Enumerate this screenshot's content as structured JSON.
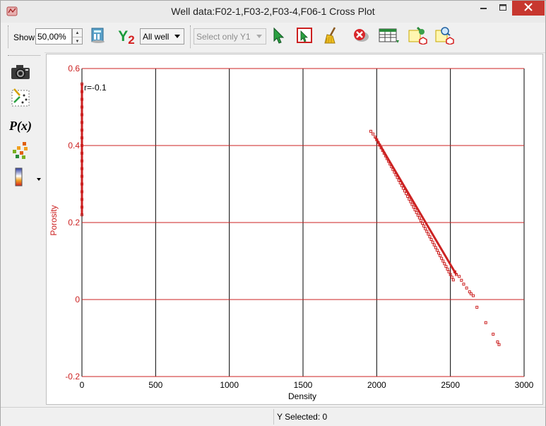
{
  "window": {
    "title": "Well data:F02-1,F03-2,F03-4,F06-1 Cross Plot",
    "icon": "app-logo-icon"
  },
  "toolbar": {
    "show_label": "Show",
    "show_value": "50,00%",
    "y2_label": "Y",
    "y2_subscript": "2",
    "well_select": "All well",
    "select_y1": "Select only Y1",
    "icons": [
      "data-table-icon",
      "y2-axis-icon",
      "select-arrow-icon",
      "rectangle-select-icon",
      "broom-clean-icon",
      "remove-selection-icon",
      "table-grid-icon",
      "settings-export-icon",
      "zoom-search-icon"
    ]
  },
  "sidebar": {
    "px_label": "P(x)",
    "icons": [
      "camera-icon",
      "scatter-swap-icon",
      "function-icon",
      "color-scatter-icon",
      "color-scale-icon"
    ]
  },
  "chart_data": {
    "type": "scatter",
    "xlabel": "Density",
    "ylabel": "Porosity",
    "xlim": [
      0,
      3000
    ],
    "ylim": [
      -0.2,
      0.6
    ],
    "x_ticks": [
      0,
      500,
      1000,
      1500,
      2000,
      2500,
      3000
    ],
    "y_ticks": [
      -0.2,
      0,
      0.2,
      0.4,
      0.6
    ],
    "x_tick_labels": [
      "0",
      "500",
      "1000",
      "1500",
      "2000",
      "2500",
      "3000"
    ],
    "y_tick_labels": [
      "-0.2",
      "0",
      "0.2",
      "0.4",
      "0.6"
    ],
    "annotation": "r=-0.1",
    "grid": true,
    "series": [
      {
        "color": "#cc2222",
        "points": [
          [
            0,
            0.22
          ],
          [
            0,
            0.24
          ],
          [
            0,
            0.26
          ],
          [
            0,
            0.28
          ],
          [
            0,
            0.3
          ],
          [
            0,
            0.32
          ],
          [
            0,
            0.34
          ],
          [
            0,
            0.36
          ],
          [
            0,
            0.38
          ],
          [
            0,
            0.4
          ],
          [
            0,
            0.42
          ],
          [
            0,
            0.44
          ],
          [
            0,
            0.46
          ],
          [
            0,
            0.48
          ],
          [
            0,
            0.5
          ],
          [
            0,
            0.52
          ],
          [
            0,
            0.54
          ],
          [
            0,
            0.56
          ],
          [
            1960,
            0.437
          ],
          [
            1975,
            0.43
          ],
          [
            1990,
            0.422
          ],
          [
            2000,
            0.415
          ],
          [
            2010,
            0.408
          ],
          [
            2020,
            0.401
          ],
          [
            2030,
            0.394
          ],
          [
            2040,
            0.387
          ],
          [
            2050,
            0.38
          ],
          [
            2060,
            0.373
          ],
          [
            2070,
            0.366
          ],
          [
            2080,
            0.359
          ],
          [
            2090,
            0.352
          ],
          [
            2100,
            0.345
          ],
          [
            2110,
            0.338
          ],
          [
            2120,
            0.331
          ],
          [
            2130,
            0.324
          ],
          [
            2140,
            0.317
          ],
          [
            2150,
            0.31
          ],
          [
            2160,
            0.303
          ],
          [
            2170,
            0.296
          ],
          [
            2180,
            0.289
          ],
          [
            2190,
            0.282
          ],
          [
            2200,
            0.275
          ],
          [
            2210,
            0.268
          ],
          [
            2220,
            0.261
          ],
          [
            2230,
            0.254
          ],
          [
            2240,
            0.247
          ],
          [
            2250,
            0.24
          ],
          [
            2260,
            0.233
          ],
          [
            2270,
            0.226
          ],
          [
            2280,
            0.219
          ],
          [
            2290,
            0.212
          ],
          [
            2300,
            0.205
          ],
          [
            2310,
            0.198
          ],
          [
            2320,
            0.191
          ],
          [
            2330,
            0.184
          ],
          [
            2340,
            0.177
          ],
          [
            2350,
            0.17
          ],
          [
            2360,
            0.163
          ],
          [
            2370,
            0.156
          ],
          [
            2380,
            0.149
          ],
          [
            2390,
            0.142
          ],
          [
            2400,
            0.135
          ],
          [
            2410,
            0.128
          ],
          [
            2420,
            0.121
          ],
          [
            2430,
            0.114
          ],
          [
            2440,
            0.107
          ],
          [
            2450,
            0.1
          ],
          [
            2460,
            0.093
          ],
          [
            2470,
            0.086
          ],
          [
            2480,
            0.079
          ],
          [
            2490,
            0.072
          ],
          [
            2500,
            0.065
          ],
          [
            2510,
            0.058
          ],
          [
            2520,
            0.051
          ],
          [
            2530,
            0.072
          ],
          [
            2540,
            0.065
          ],
          [
            2560,
            0.06
          ],
          [
            2575,
            0.05
          ],
          [
            2590,
            0.04
          ],
          [
            2610,
            0.03
          ],
          [
            2630,
            0.02
          ],
          [
            2640,
            0.015
          ],
          [
            2655,
            0.01
          ],
          [
            2680,
            -0.02
          ],
          [
            2740,
            -0.06
          ],
          [
            2790,
            -0.09
          ],
          [
            2820,
            -0.11
          ],
          [
            2830,
            -0.117
          ]
        ]
      }
    ]
  },
  "status": {
    "y_selected": "Y Selected: 0"
  }
}
